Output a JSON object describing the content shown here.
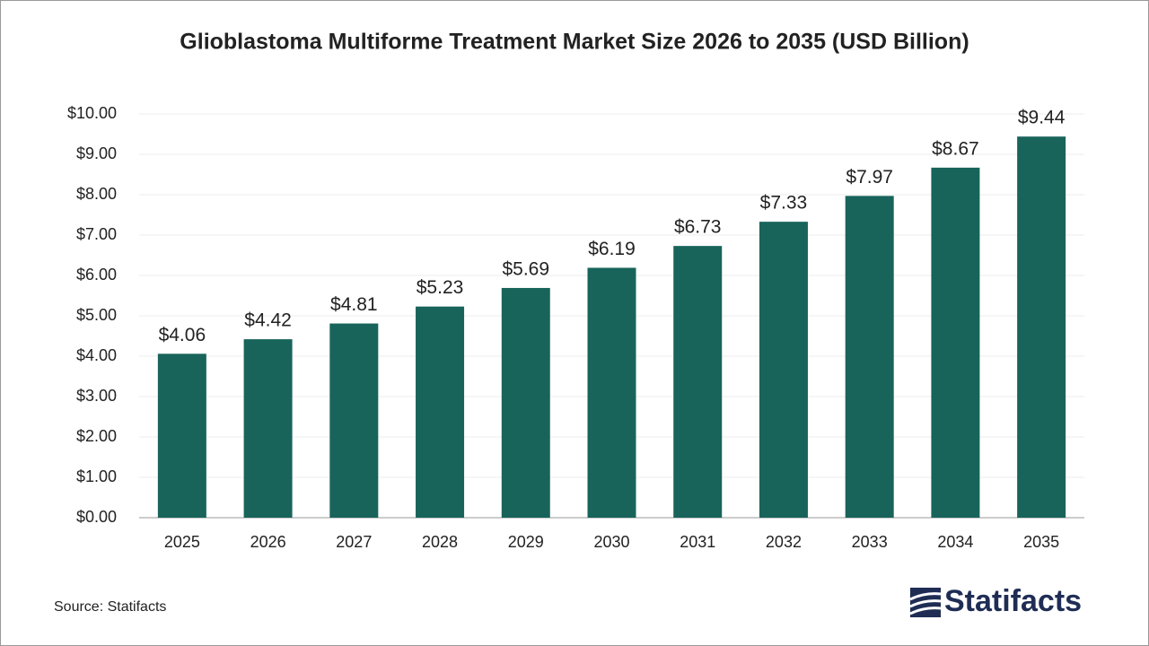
{
  "chart_data": {
    "type": "bar",
    "title": "Glioblastoma Multiforme Treatment Market Size 2026 to 2035 (USD Billion)",
    "categories": [
      "2025",
      "2026",
      "2027",
      "2028",
      "2029",
      "2030",
      "2031",
      "2032",
      "2033",
      "2034",
      "2035"
    ],
    "values": [
      4.06,
      4.42,
      4.81,
      5.23,
      5.69,
      6.19,
      6.73,
      7.33,
      7.97,
      8.67,
      9.44
    ],
    "value_labels": [
      "$4.06",
      "$4.42",
      "$4.81",
      "$5.23",
      "$5.69",
      "$6.19",
      "$6.73",
      "$7.33",
      "$7.97",
      "$8.67",
      "$9.44"
    ],
    "color": "#18645a",
    "ylim": [
      0,
      10
    ],
    "yticks": [
      {
        "value": 0,
        "label": "$0.00"
      },
      {
        "value": 1,
        "label": "$1.00"
      },
      {
        "value": 2,
        "label": "$2.00"
      },
      {
        "value": 3,
        "label": "$3.00"
      },
      {
        "value": 4,
        "label": "$4.00"
      },
      {
        "value": 5,
        "label": "$5.00"
      },
      {
        "value": 6,
        "label": "$6.00"
      },
      {
        "value": 7,
        "label": "$7.00"
      },
      {
        "value": 8,
        "label": "$8.00"
      },
      {
        "value": 9,
        "label": "$9.00"
      },
      {
        "value": 10,
        "label": "$10.00"
      }
    ],
    "grid": true,
    "source": "Source: Statifacts",
    "brand": "Statifacts"
  }
}
